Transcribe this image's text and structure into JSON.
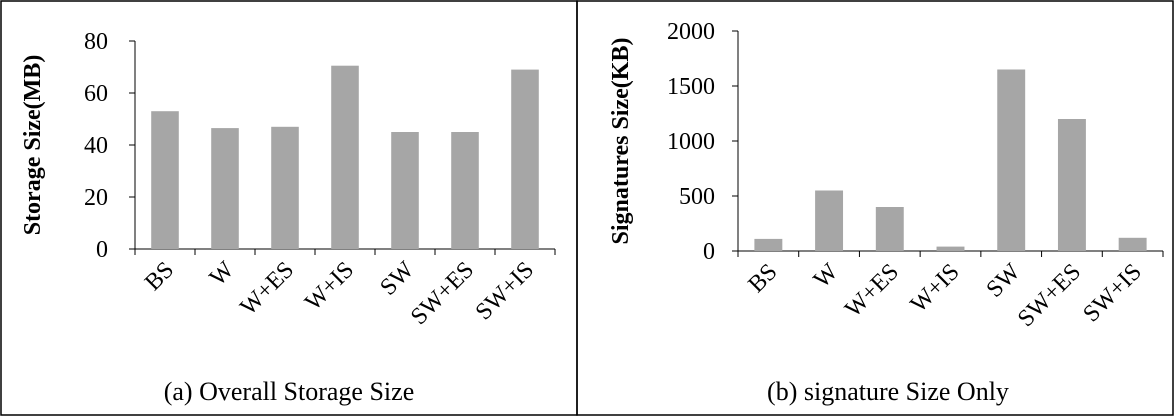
{
  "chart_data": [
    {
      "type": "bar",
      "title": "",
      "caption": "(a) Overall Storage Size",
      "xlabel": "",
      "ylabel": "Storage Size(MB)",
      "categories": [
        "BS",
        "W",
        "W+ES",
        "W+IS",
        "SW",
        "SW+ES",
        "SW+IS"
      ],
      "values": [
        53,
        46.5,
        47,
        70.5,
        45,
        45,
        69
      ],
      "ylim": [
        0,
        80
      ],
      "yticks": [
        0,
        20,
        40,
        60,
        80
      ],
      "bar_color": "#a6a6a6",
      "grid": false
    },
    {
      "type": "bar",
      "title": "",
      "caption": "(b) signature Size Only",
      "xlabel": "",
      "ylabel": "Signatures Size(KB)",
      "categories": [
        "BS",
        "W",
        "W+ES",
        "W+IS",
        "SW",
        "SW+ES",
        "SW+IS"
      ],
      "values": [
        110,
        550,
        400,
        40,
        1650,
        1200,
        120
      ],
      "ylim": [
        0,
        2000
      ],
      "yticks": [
        0,
        500,
        1000,
        1500,
        2000
      ],
      "bar_color": "#a6a6a6",
      "grid": false
    }
  ]
}
